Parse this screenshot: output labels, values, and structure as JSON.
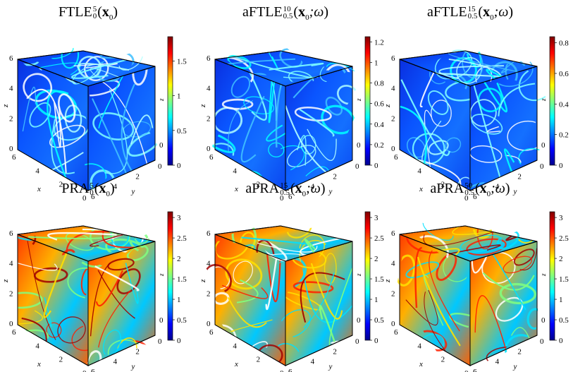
{
  "panels": [
    {
      "id": "ftle",
      "title": {
        "base": "FTLE",
        "sup": "5",
        "sub": "0",
        "arg_main": "x",
        "arg_sub": "0",
        "omega": ""
      },
      "cbar": {
        "min": 0,
        "max": 1.85,
        "ticks": [
          "0",
          "0.5",
          "1",
          "1.5"
        ],
        "cmap": "ftle"
      },
      "front_palette": "ftle",
      "left_seed": 1,
      "top_seed": 2,
      "right_seed": 3
    },
    {
      "id": "aftle10",
      "title": {
        "base": "aFTLE",
        "sup": "10",
        "sub": "0.5",
        "arg_main": "x",
        "arg_sub": "0",
        "omega": ";ω"
      },
      "cbar": {
        "min": 0,
        "max": 1.25,
        "ticks": [
          "0",
          "0.2",
          "0.4",
          "0.6",
          "0.8",
          "1",
          "1.2"
        ],
        "cmap": "ftle"
      },
      "front_palette": "ftle",
      "left_seed": 4,
      "top_seed": 5,
      "right_seed": 6
    },
    {
      "id": "aftle15",
      "title": {
        "base": "aFTLE",
        "sup": "15",
        "sub": "0.5",
        "arg_main": "x",
        "arg_sub": "0",
        "omega": ";ω"
      },
      "cbar": {
        "min": 0,
        "max": 0.84,
        "ticks": [
          "0",
          "0.2",
          "0.4",
          "0.6",
          "0.8"
        ],
        "cmap": "ftle"
      },
      "front_palette": "ftle",
      "left_seed": 7,
      "top_seed": 8,
      "right_seed": 9
    },
    {
      "id": "pra5",
      "title": {
        "base": "PRA",
        "sup": "5",
        "sub": "0",
        "arg_main": "x",
        "arg_sub": "0",
        "omega": ""
      },
      "cbar": {
        "min": 0,
        "max": 3.14,
        "ticks": [
          "0",
          "0.5",
          "1",
          "1.5",
          "2",
          "2.5",
          "3"
        ],
        "cmap": "pra"
      },
      "front_palette": "pra",
      "left_seed": 10,
      "top_seed": 11,
      "right_seed": 12
    },
    {
      "id": "apra15",
      "title": {
        "base": "aPRA",
        "sup": "15",
        "sub": "0.5",
        "arg_main": "x",
        "arg_sub": "0",
        "omega": ";ω"
      },
      "cbar": {
        "min": 0,
        "max": 3.14,
        "ticks": [
          "0",
          "0.5",
          "1",
          "1.5",
          "2",
          "2.5",
          "3"
        ],
        "cmap": "pra"
      },
      "front_palette": "pra",
      "left_seed": 13,
      "top_seed": 14,
      "right_seed": 15
    },
    {
      "id": "apra50",
      "title": {
        "base": "aPRA",
        "sup": "50",
        "sub": "0.5",
        "arg_main": "x",
        "arg_sub": "0",
        "omega": ";ω"
      },
      "cbar": {
        "min": 0,
        "max": 3.14,
        "ticks": [
          "0",
          "0.5",
          "1",
          "1.5",
          "2",
          "2.5",
          "3"
        ],
        "cmap": "pra"
      },
      "front_palette": "pra",
      "left_seed": 16,
      "top_seed": 17,
      "right_seed": 18
    }
  ],
  "axes": {
    "z_label": "z",
    "z_ticks": [
      "0",
      "2",
      "4",
      "6"
    ],
    "x_label": "x",
    "x_ticks": [
      "6",
      "4",
      "2",
      "0"
    ],
    "y_label": "y",
    "y_ticks": [
      "6",
      "4",
      "2",
      "0"
    ],
    "cbar_axis_label": "z"
  },
  "colormaps": {
    "jet": [
      "#00008f",
      "#0000ff",
      "#0080ff",
      "#00ffff",
      "#80ff80",
      "#ffff00",
      "#ff8000",
      "#ff0000",
      "#800000"
    ]
  }
}
